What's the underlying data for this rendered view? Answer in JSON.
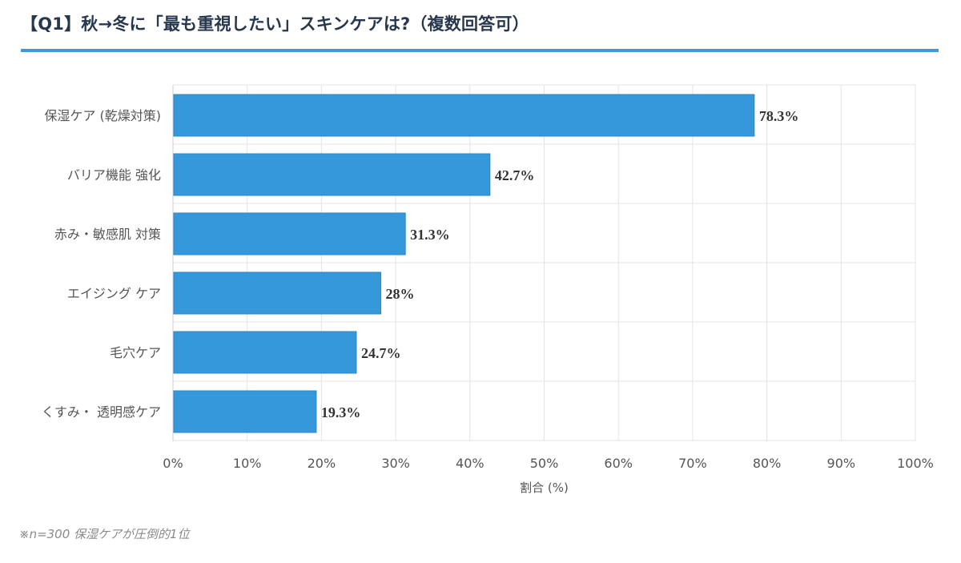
{
  "page": {
    "title": "【Q1】秋→冬に「最も重視したい」スキンケアは?（複数回答可）",
    "footnote": "※n=300 保湿ケアが圧倒的1位"
  },
  "colors": {
    "bar": "#3498db",
    "bar_border": "#2b86c8",
    "title_rule": "#3a9ae0",
    "grid": "#e4e4e4"
  },
  "chart_data": {
    "type": "bar",
    "orientation": "horizontal",
    "categories": [
      "保湿ケア (乾燥対策)",
      "バリア機能 強化",
      "赤み・敏感肌 対策",
      "エイジング ケア",
      "毛穴ケア",
      "くすみ・ 透明感ケア"
    ],
    "values": [
      78.3,
      42.7,
      31.3,
      28,
      24.7,
      19.3
    ],
    "data_labels": [
      "78.3%",
      "42.7%",
      "31.3%",
      "28%",
      "24.7%",
      "19.3%"
    ],
    "xlabel": "割合 (%)",
    "ylabel": "",
    "xlim": [
      0,
      100
    ],
    "x_ticks": [
      0,
      10,
      20,
      30,
      40,
      50,
      60,
      70,
      80,
      90,
      100
    ],
    "x_tick_labels": [
      "0%",
      "10%",
      "20%",
      "30%",
      "40%",
      "50%",
      "60%",
      "70%",
      "80%",
      "90%",
      "100%"
    ],
    "grid": true,
    "legend": "none"
  }
}
